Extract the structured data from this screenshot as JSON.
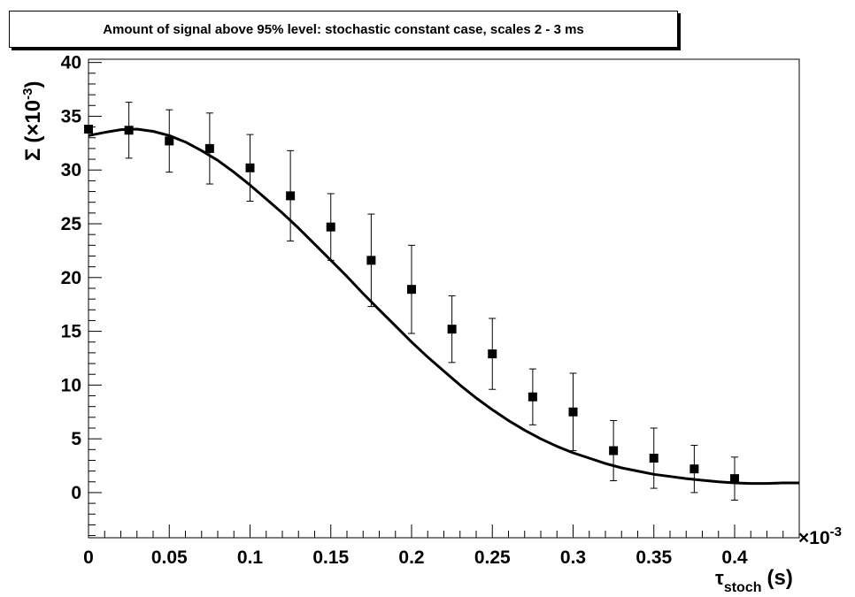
{
  "title": "Amount of signal above 95% level: stochastic constant case, scales 2 - 3 ms",
  "chart_data": {
    "type": "scatter",
    "title": "Amount of signal above 95% level: stochastic constant case, scales 2 - 3 ms",
    "xlabel_symbol": "τ",
    "xlabel_sub": "stoch",
    "xlabel_unit": "(s)",
    "x_exponent_label": "×10",
    "x_exponent_power": "-3",
    "ylabel_symbol": "Σ",
    "ylabel_scale": "(×10",
    "ylabel_power": "-3",
    "ylabel_close": ")",
    "xlim": [
      0,
      0.00044
    ],
    "ylim": [
      -4.2,
      40.3
    ],
    "x_ticks": [
      0,
      0.05,
      0.1,
      0.15,
      0.2,
      0.25,
      0.3,
      0.35,
      0.4
    ],
    "x_tick_labels": [
      "0",
      "0.05",
      "0.1",
      "0.15",
      "0.2",
      "0.25",
      "0.3",
      "0.35",
      "0.4"
    ],
    "y_ticks": [
      0,
      5,
      10,
      15,
      20,
      25,
      30,
      35,
      40
    ],
    "y_tick_labels": [
      "0",
      "5",
      "10",
      "15",
      "20",
      "25",
      "30",
      "35",
      "40"
    ],
    "grid": false,
    "series": [
      {
        "marker": "square",
        "x": [
          0,
          2.5e-05,
          5e-05,
          7.5e-05,
          0.0001,
          0.000125,
          0.00015,
          0.000175,
          0.0002,
          0.000225,
          0.00025,
          0.000275,
          0.0003,
          0.000325,
          0.00035,
          0.000375,
          0.0004
        ],
        "y": [
          33.8,
          33.7,
          32.7,
          32.0,
          30.2,
          27.6,
          24.7,
          21.6,
          18.9,
          15.2,
          12.9,
          8.9,
          7.5,
          3.9,
          3.2,
          2.2,
          1.3
        ],
        "yerr": [
          0.0,
          2.6,
          2.9,
          3.3,
          3.1,
          4.2,
          3.1,
          4.3,
          4.1,
          3.1,
          3.3,
          2.6,
          3.6,
          2.8,
          2.8,
          2.2,
          2.0
        ]
      },
      {
        "type": "line",
        "x": [
          0,
          1e-05,
          2e-05,
          3e-05,
          4e-05,
          5e-05,
          6e-05,
          7e-05,
          8e-05,
          9e-05,
          0.0001,
          0.00011,
          0.00012,
          0.00013,
          0.00014,
          0.00015,
          0.00016,
          0.00017,
          0.00018,
          0.00019,
          0.0002,
          0.00021,
          0.00022,
          0.00023,
          0.00024,
          0.00025,
          0.00026,
          0.00027,
          0.00028,
          0.00029,
          0.0003,
          0.00031,
          0.00032,
          0.00033,
          0.00034,
          0.00035,
          0.00036,
          0.00037,
          0.00038,
          0.00039,
          0.0004,
          0.00041,
          0.00042,
          0.00043,
          0.00044
        ],
        "y": [
          33.2,
          33.5,
          33.75,
          33.8,
          33.6,
          33.2,
          32.6,
          31.8,
          30.9,
          29.8,
          28.6,
          27.3,
          26.0,
          24.6,
          23.1,
          21.6,
          20.1,
          18.5,
          17.0,
          15.5,
          14.0,
          12.6,
          11.3,
          10.0,
          8.8,
          7.7,
          6.7,
          5.8,
          5.0,
          4.3,
          3.7,
          3.2,
          2.7,
          2.3,
          2.0,
          1.7,
          1.5,
          1.3,
          1.15,
          1.0,
          0.9,
          0.85,
          0.85,
          0.9,
          0.9
        ]
      }
    ]
  }
}
